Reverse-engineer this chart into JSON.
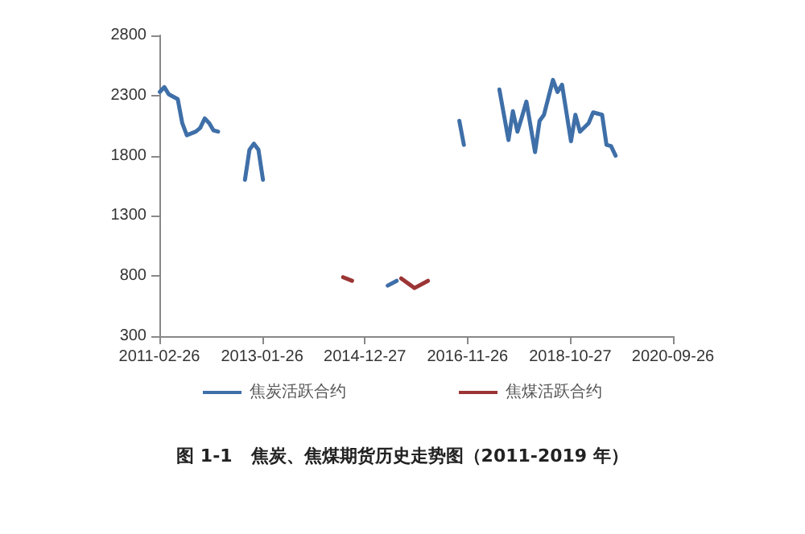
{
  "chart_data": {
    "type": "line",
    "title": "图 1-1   焦炭、焦煤期货历史走势图（2011-2019 年）",
    "xlim": [
      "2011-02-26",
      "2020-09-26"
    ],
    "xticks": [
      "2011-02-26",
      "2013-01-26",
      "2014-12-27",
      "2016-11-26",
      "2018-10-27",
      "2020-09-26"
    ],
    "ylim": [
      300,
      2800
    ],
    "yticks": [
      300,
      800,
      1300,
      1800,
      2300,
      2800
    ],
    "grid": false,
    "legend": "bottom",
    "marker": "none",
    "line_style": "solid",
    "series": [
      {
        "name": "焦炭活跃合约",
        "color": "#3f6fa8",
        "x": [
          "2011-03",
          "2011-04",
          "2011-05",
          "2011-07",
          "2011-08",
          "2011-09",
          "2011-11",
          "2011-12",
          "2012-01",
          "2012-02",
          "2012-03",
          "2012-04",
          "2012-08",
          "2012-10",
          "2012-11",
          "2012-12",
          "2013-01",
          "2013-02",
          "2014-01",
          "2015-06",
          "2015-08",
          "2016-02",
          "2016-10",
          "2016-11",
          "2017-03",
          "2017-07",
          "2017-09",
          "2017-10",
          "2017-11",
          "2017-12",
          "2018-01",
          "2018-03",
          "2018-04",
          "2018-05",
          "2018-07",
          "2018-08",
          "2018-09",
          "2018-11",
          "2018-12",
          "2019-01",
          "2019-03",
          "2019-04",
          "2019-06",
          "2019-07",
          "2019-08",
          "2019-09"
        ],
        "values": [
          2330,
          2370,
          2310,
          2270,
          2070,
          1970,
          2000,
          2030,
          2110,
          2070,
          2010,
          2000,
          null,
          1600,
          1850,
          1900,
          1850,
          1600,
          null,
          720,
          760,
          null,
          2090,
          1890,
          null,
          2350,
          1930,
          2170,
          2000,
          2120,
          2250,
          1830,
          2090,
          2140,
          2430,
          2330,
          2390,
          1920,
          2140,
          2000,
          2070,
          2160,
          2140,
          1890,
          1880,
          1800
        ]
      },
      {
        "name": "焦煤活跃合约",
        "color": "#9b3535",
        "x": [
          "2014-08",
          "2014-10",
          "2015-03",
          "2015-09",
          "2015-12",
          "2016-03"
        ],
        "values": [
          790,
          760,
          null,
          780,
          700,
          760
        ]
      }
    ]
  }
}
